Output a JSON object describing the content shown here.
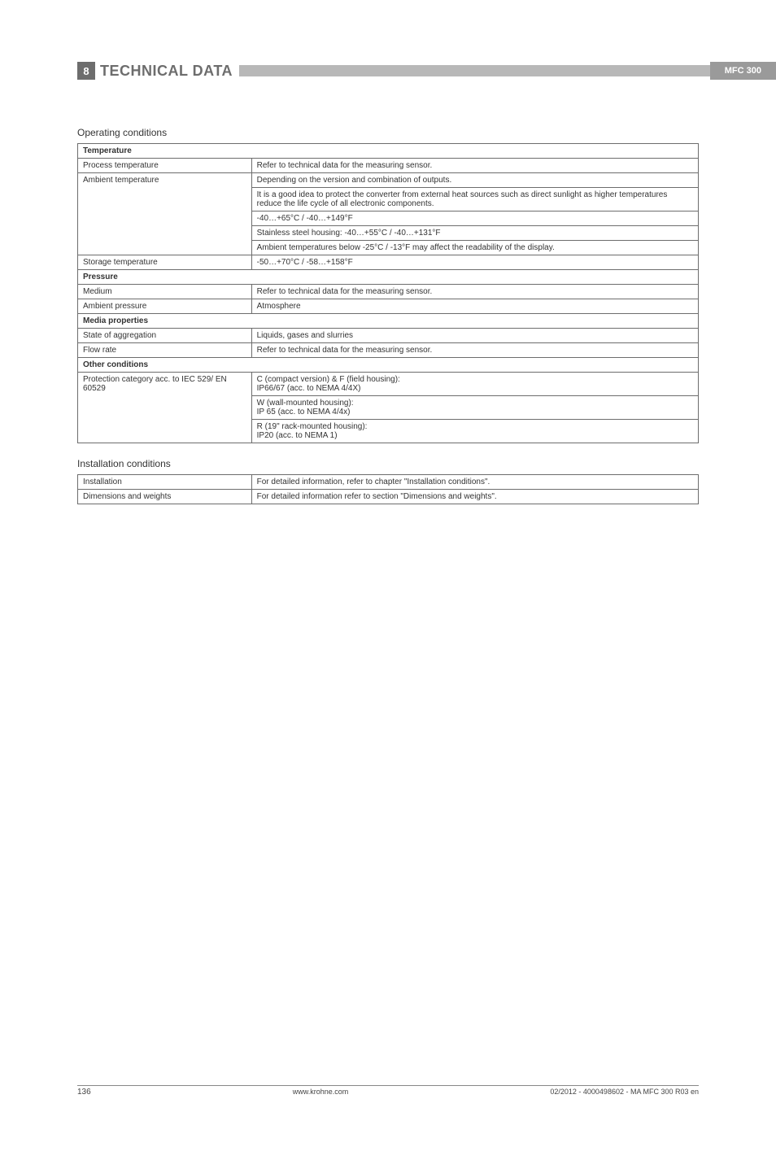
{
  "header": {
    "section_number": "8",
    "title": "TECHNICAL DATA",
    "badge": "MFC 300"
  },
  "sections": {
    "operating": {
      "title": "Operating conditions",
      "groups": [
        {
          "header": "Temperature",
          "rows": [
            {
              "label": "Process temperature",
              "value": "Refer to technical data for the measuring sensor."
            },
            {
              "label": "Ambient temperature",
              "value": "Depending on the version and combination of outputs.",
              "rowspan": 5
            },
            {
              "value": "It is a good idea to protect the converter from external heat sources such as direct sunlight as higher temperatures reduce the life cycle of all electronic components."
            },
            {
              "value": "-40…+65°C / -40…+149°F"
            },
            {
              "value": "Stainless steel housing: -40…+55°C / -40…+131°F"
            },
            {
              "value": "Ambient temperatures below -25°C / -13°F may affect the readability of the display."
            },
            {
              "label": "Storage temperature",
              "value": "-50…+70°C / -58…+158°F"
            }
          ]
        },
        {
          "header": "Pressure",
          "rows": [
            {
              "label": "Medium",
              "value": "Refer to technical data for the measuring sensor."
            },
            {
              "label": "Ambient pressure",
              "value": "Atmosphere"
            }
          ]
        },
        {
          "header": "Media properties",
          "rows": [
            {
              "label": "State of aggregation",
              "value": "Liquids, gases and slurries"
            },
            {
              "label": "Flow rate",
              "value": "Refer to technical data for the measuring sensor."
            }
          ]
        },
        {
          "header": "Other conditions",
          "rows": [
            {
              "label": "Protection category acc. to IEC 529/ EN 60529",
              "value": "C (compact version) & F (field housing):\nIP66/67 (acc. to NEMA 4/4X)",
              "rowspan": 3
            },
            {
              "value": "W (wall-mounted housing):\nIP 65 (acc. to NEMA 4/4x)"
            },
            {
              "value": "R (19\" rack-mounted housing):\nIP20 (acc. to NEMA 1)"
            }
          ]
        }
      ]
    },
    "installation": {
      "title": "Installation conditions",
      "rows": [
        {
          "label": "Installation",
          "value": "For detailed information, refer to chapter \"Installation conditions\"."
        },
        {
          "label": "Dimensions and weights",
          "value": "For detailed information refer to section \"Dimensions and weights\"."
        }
      ]
    }
  },
  "footer": {
    "page": "136",
    "url": "www.krohne.com",
    "docref": "02/2012 - 4000498602 - MA MFC 300 R03 en"
  },
  "colors": {
    "header_box_bg": "#6d6d6d",
    "header_text": "#6d6d6d",
    "header_line_bg": "#b8b8b8",
    "badge_bg": "#9a9a9a",
    "border": "#6d6d6d",
    "text": "#333333"
  }
}
